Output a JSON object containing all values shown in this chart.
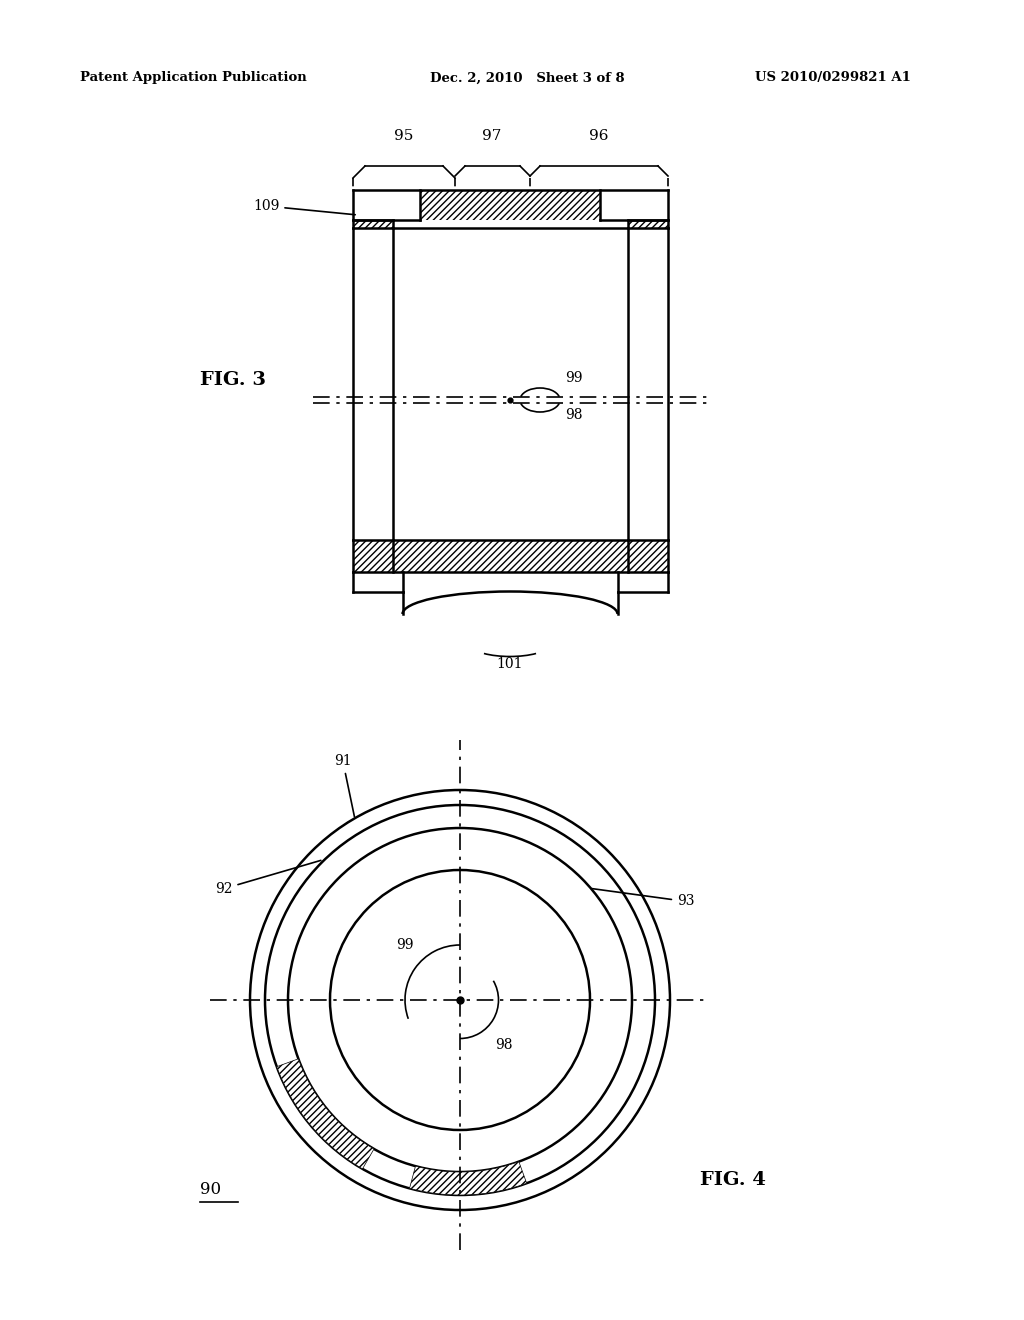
{
  "header_left": "Patent Application Publication",
  "header_mid": "Dec. 2, 2010   Sheet 3 of 8",
  "header_right": "US 2010/0299821 A1",
  "fig3_label": "FIG. 3",
  "fig4_label": "FIG. 4",
  "bg_color": "#ffffff",
  "line_color": "#000000"
}
